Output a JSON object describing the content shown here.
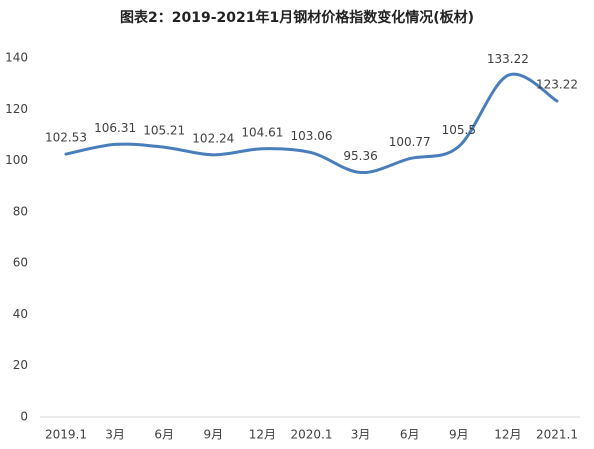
{
  "chart_data": {
    "type": "line",
    "title": "图表2：2019-2021年1月钢材价格指数变化情况(板材)",
    "categories": [
      "2019.1",
      "3月",
      "6月",
      "9月",
      "12月",
      "2020.1",
      "3月",
      "6月",
      "9月",
      "12月",
      "2021.1"
    ],
    "series": [
      {
        "name": "板材",
        "color": "#4a7ebb",
        "values": [
          102.53,
          106.31,
          105.21,
          102.24,
          104.61,
          103.06,
          95.36,
          100.77,
          105.5,
          133.22,
          123.22
        ]
      }
    ],
    "ylim": [
      0,
      140
    ],
    "yticks": [
      0,
      20,
      40,
      60,
      80,
      100,
      120,
      140
    ],
    "grid": false,
    "smooth": true
  }
}
